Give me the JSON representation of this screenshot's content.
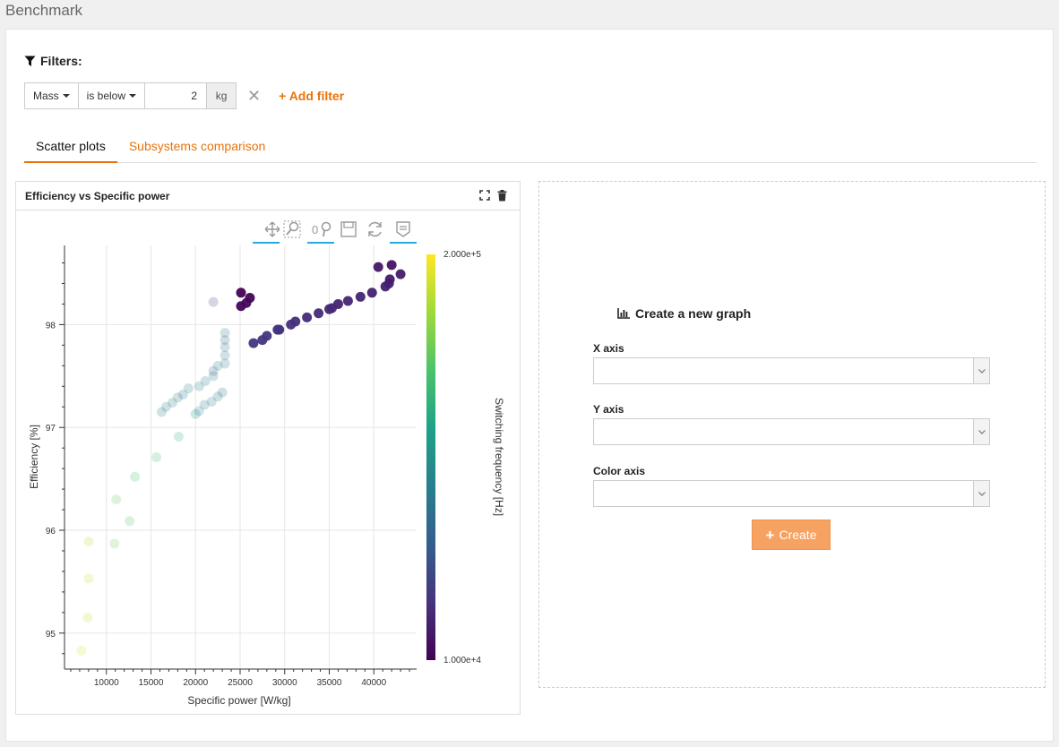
{
  "page": {
    "title": "Benchmark"
  },
  "filters": {
    "label": "Filters:",
    "rows": [
      {
        "field": "Mass",
        "operator": "is below",
        "value": "2",
        "unit": "kg"
      }
    ],
    "add_label": "Add filter"
  },
  "tabs": [
    {
      "label": "Scatter plots",
      "active": true
    },
    {
      "label": "Subsystems comparison",
      "active": false
    }
  ],
  "plot_panel": {
    "title": "Efficiency vs Specific power"
  },
  "new_graph": {
    "title": "Create a new graph",
    "x_label": "X axis",
    "y_label": "Y axis",
    "color_label": "Color axis",
    "x_value": "",
    "y_value": "",
    "color_value": "",
    "create_label": "Create"
  },
  "colors": {
    "accent": "#e8730c",
    "create_button": "#f6a263"
  },
  "chart_data": {
    "type": "scatter",
    "title": "",
    "xlabel": "Specific power [W/kg]",
    "ylabel": "Efficiency [%]",
    "xlim": [
      5300,
      44800
    ],
    "ylim": [
      94.65,
      98.77
    ],
    "xticks": [
      10000,
      15000,
      20000,
      25000,
      30000,
      35000,
      40000
    ],
    "yticks": [
      95,
      96,
      97,
      98
    ],
    "grid": true,
    "colorbar": {
      "label": "Switching frequency [Hz]",
      "min_label": "1.000e+4",
      "max_label": "2.000e+5",
      "min": 10000,
      "max": 200000,
      "colormap": "viridis"
    },
    "points": [
      {
        "x": 7200,
        "y": 94.83,
        "c": 190000
      },
      {
        "x": 7900,
        "y": 95.15,
        "c": 185000
      },
      {
        "x": 8000,
        "y": 95.53,
        "c": 185000
      },
      {
        "x": 8000,
        "y": 95.89,
        "c": 180000
      },
      {
        "x": 10900,
        "y": 95.87,
        "c": 160000
      },
      {
        "x": 11100,
        "y": 96.3,
        "c": 155000
      },
      {
        "x": 12600,
        "y": 96.09,
        "c": 150000
      },
      {
        "x": 13200,
        "y": 96.52,
        "c": 145000
      },
      {
        "x": 15600,
        "y": 96.71,
        "c": 140000
      },
      {
        "x": 18100,
        "y": 96.91,
        "c": 130000
      },
      {
        "x": 16200,
        "y": 97.15,
        "c": 90000
      },
      {
        "x": 16700,
        "y": 97.2,
        "c": 90000
      },
      {
        "x": 17400,
        "y": 97.24,
        "c": 90000
      },
      {
        "x": 18000,
        "y": 97.29,
        "c": 90000
      },
      {
        "x": 18600,
        "y": 97.32,
        "c": 80000
      },
      {
        "x": 19200,
        "y": 97.38,
        "c": 90000
      },
      {
        "x": 20000,
        "y": 97.13,
        "c": 100000
      },
      {
        "x": 20400,
        "y": 97.16,
        "c": 100000
      },
      {
        "x": 20400,
        "y": 97.4,
        "c": 90000
      },
      {
        "x": 21000,
        "y": 97.22,
        "c": 90000
      },
      {
        "x": 21100,
        "y": 97.45,
        "c": 90000
      },
      {
        "x": 21800,
        "y": 97.25,
        "c": 90000
      },
      {
        "x": 22000,
        "y": 97.5,
        "c": 80000
      },
      {
        "x": 22000,
        "y": 97.55,
        "c": 70000
      },
      {
        "x": 22500,
        "y": 97.3,
        "c": 90000
      },
      {
        "x": 22500,
        "y": 97.6,
        "c": 90000
      },
      {
        "x": 23000,
        "y": 97.34,
        "c": 80000
      },
      {
        "x": 23300,
        "y": 97.62,
        "c": 90000
      },
      {
        "x": 23300,
        "y": 97.7,
        "c": 90000
      },
      {
        "x": 23300,
        "y": 97.78,
        "c": 90000
      },
      {
        "x": 23300,
        "y": 97.85,
        "c": 70000
      },
      {
        "x": 23300,
        "y": 97.92,
        "c": 90000
      },
      {
        "x": 22000,
        "y": 98.22,
        "c": 50000
      },
      {
        "x": 25100,
        "y": 98.31,
        "c": 10000
      },
      {
        "x": 25100,
        "y": 98.18,
        "c": 12000
      },
      {
        "x": 25700,
        "y": 98.21,
        "c": 15000
      },
      {
        "x": 26100,
        "y": 98.26,
        "c": 12000
      },
      {
        "x": 26500,
        "y": 97.82,
        "c": 40000
      },
      {
        "x": 27500,
        "y": 97.85,
        "c": 40000
      },
      {
        "x": 28000,
        "y": 97.89,
        "c": 40000
      },
      {
        "x": 29200,
        "y": 97.95,
        "c": 38000
      },
      {
        "x": 29400,
        "y": 97.95,
        "c": 38000
      },
      {
        "x": 30700,
        "y": 98.0,
        "c": 36000
      },
      {
        "x": 31200,
        "y": 98.03,
        "c": 35000
      },
      {
        "x": 32500,
        "y": 98.07,
        "c": 34000
      },
      {
        "x": 33800,
        "y": 98.11,
        "c": 34000
      },
      {
        "x": 35000,
        "y": 98.15,
        "c": 32000
      },
      {
        "x": 35300,
        "y": 98.16,
        "c": 32000
      },
      {
        "x": 36000,
        "y": 98.2,
        "c": 30000
      },
      {
        "x": 37100,
        "y": 98.23,
        "c": 30000
      },
      {
        "x": 38500,
        "y": 98.27,
        "c": 30000
      },
      {
        "x": 39800,
        "y": 98.31,
        "c": 28000
      },
      {
        "x": 41300,
        "y": 98.37,
        "c": 28000
      },
      {
        "x": 41700,
        "y": 98.4,
        "c": 28000
      },
      {
        "x": 41800,
        "y": 98.44,
        "c": 25000
      },
      {
        "x": 43000,
        "y": 98.49,
        "c": 25000
      },
      {
        "x": 40500,
        "y": 98.56,
        "c": 22000
      },
      {
        "x": 42000,
        "y": 98.58,
        "c": 20000
      }
    ]
  }
}
